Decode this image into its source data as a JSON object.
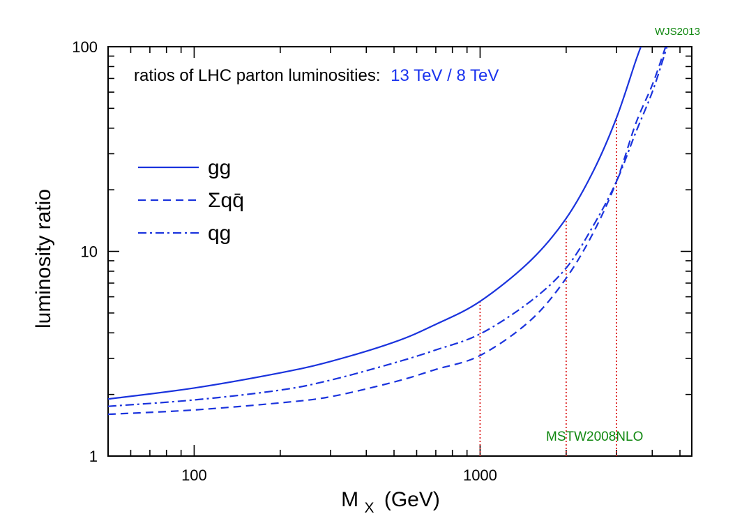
{
  "chart_data": {
    "type": "line",
    "title_prefix": "ratios of LHC parton luminosities:",
    "title_highlight": "13 TeV / 8 TeV",
    "corner_label": "WJS2013",
    "pdf_label": "MSTW2008NLO",
    "xlabel_main": "M",
    "xlabel_sub": "X",
    "xlabel_unit": "(GeV)",
    "ylabel": "luminosity ratio",
    "xscale": "log",
    "yscale": "log",
    "xlim": [
      50,
      5500
    ],
    "ylim": [
      1,
      100
    ],
    "x_tick_labels": [
      {
        "v": 100,
        "label": "100"
      },
      {
        "v": 1000,
        "label": "1000"
      }
    ],
    "y_tick_labels": [
      {
        "v": 1,
        "label": "1"
      },
      {
        "v": 10,
        "label": "10"
      },
      {
        "v": 100,
        "label": "100"
      }
    ],
    "legend_position": "left",
    "colors": {
      "series": "#1a33dd",
      "highlight": "#1a33ee",
      "marker": "#dd2222",
      "credit": "#118811"
    },
    "series": [
      {
        "name": "gg",
        "style": "solid",
        "points": [
          [
            50,
            1.9
          ],
          [
            100,
            2.15
          ],
          [
            200,
            2.55
          ],
          [
            300,
            2.9
          ],
          [
            500,
            3.6
          ],
          [
            700,
            4.4
          ],
          [
            1000,
            5.7
          ],
          [
            1500,
            9.0
          ],
          [
            2000,
            14.5
          ],
          [
            2500,
            25
          ],
          [
            3000,
            45
          ],
          [
            3500,
            85
          ],
          [
            3700,
            105
          ]
        ]
      },
      {
        "name": "Σqq̄",
        "style": "dashed",
        "points": [
          [
            50,
            1.6
          ],
          [
            100,
            1.68
          ],
          [
            200,
            1.82
          ],
          [
            300,
            1.95
          ],
          [
            500,
            2.3
          ],
          [
            700,
            2.65
          ],
          [
            1000,
            3.1
          ],
          [
            1500,
            4.6
          ],
          [
            2000,
            7.4
          ],
          [
            2500,
            12.5
          ],
          [
            3000,
            22
          ],
          [
            3500,
            42
          ],
          [
            4000,
            65
          ],
          [
            4400,
            95
          ],
          [
            4500,
            105
          ]
        ]
      },
      {
        "name": "qg",
        "style": "dashdot",
        "points": [
          [
            50,
            1.75
          ],
          [
            100,
            1.88
          ],
          [
            200,
            2.1
          ],
          [
            300,
            2.35
          ],
          [
            500,
            2.85
          ],
          [
            700,
            3.3
          ],
          [
            1000,
            3.95
          ],
          [
            1500,
            5.7
          ],
          [
            2000,
            8.3
          ],
          [
            2500,
            13.5
          ],
          [
            3000,
            22
          ],
          [
            3500,
            38
          ],
          [
            4000,
            60
          ],
          [
            4400,
            90
          ],
          [
            4550,
            105
          ]
        ]
      }
    ],
    "markers": [
      {
        "x": 1000,
        "y": 5.7
      },
      {
        "x": 2000,
        "y": 14.5
      },
      {
        "x": 3000,
        "y": 45
      }
    ]
  }
}
